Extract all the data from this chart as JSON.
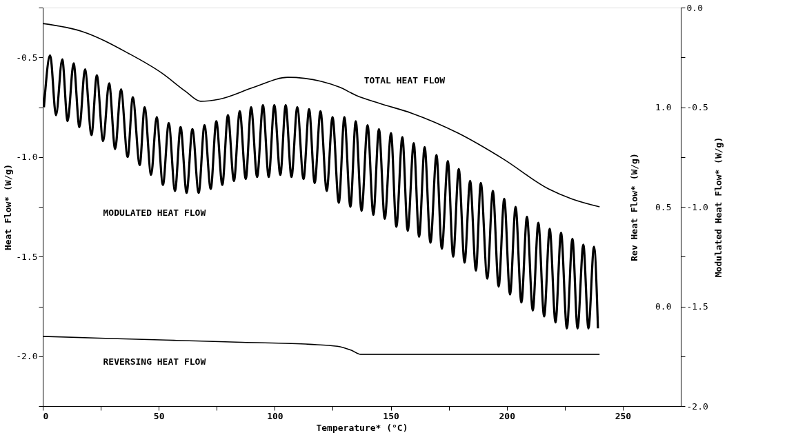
{
  "chart_data": {
    "type": "line",
    "xlabel": "Temperature* (°C)",
    "ylabel": "Heat Flow* (W/g)",
    "y2label": "Rev Heat Flow* (W/g)",
    "y3label": "Modulated Heat Flow* (W/g)",
    "xlim": [
      0,
      275
    ],
    "xticks": [
      0,
      {
        "value": 25,
        "label": null
      },
      50,
      {
        "value": 75,
        "label": null
      },
      100,
      {
        "value": 125,
        "label": null
      },
      150,
      {
        "value": 175,
        "label": null
      },
      200,
      {
        "value": 225,
        "label": null
      },
      250
    ],
    "ylim": [
      -2.25,
      -0.25
    ],
    "yticks": [
      {
        "value": -2.25,
        "label": null
      },
      {
        "value": -2.0,
        "label": "-2.0"
      },
      {
        "value": -1.75,
        "label": null
      },
      -1.5,
      {
        "value": -1.25,
        "label": null
      },
      {
        "value": -1.0,
        "label": "-1.0"
      },
      {
        "value": -0.75,
        "label": null
      },
      -0.5,
      {
        "value": -0.25,
        "label": null
      }
    ],
    "y2lim": [
      -0.5,
      1.5
    ],
    "y2ticks": [
      {
        "value": 0,
        "label": "0.0"
      },
      0.5,
      {
        "value": 1,
        "label": "1.0"
      }
    ],
    "y3lim": [
      -2.0,
      0.0
    ],
    "y3ticks": [
      {
        "value": -2.0,
        "label": "-2.0"
      },
      {
        "value": -1.75,
        "label": null
      },
      -1.5,
      {
        "value": -1.25,
        "label": null
      },
      {
        "value": -1.0,
        "label": "-1.0"
      },
      {
        "value": -0.75,
        "label": null
      },
      -0.5,
      {
        "value": -0.25,
        "label": null
      },
      {
        "value": 0,
        "label": "0.0"
      }
    ],
    "grid": false,
    "marker": "none",
    "line_style": "solid",
    "series": [
      {
        "axis": "y",
        "color": "#000000",
        "x": [
          0,
          17,
          37,
          51.5,
          61.5,
          68,
          76,
          91,
          105.6,
          120,
          128,
          135,
          145,
          159,
          179,
          198.5,
          218,
          228,
          240
        ],
        "values": [
          -0.33,
          -0.37,
          -0.48,
          -0.58,
          -0.67,
          -0.72,
          -0.71,
          -0.65,
          -0.6,
          -0.62,
          -0.65,
          -0.69,
          -0.73,
          -0.78,
          -0.88,
          -1.01,
          -1.16,
          -1.21,
          -1.25
        ]
      },
      {
        "axis": "y2",
        "color": "#000000",
        "x": [
          0,
          27,
          56.5,
          86,
          115,
          127,
          133,
          137,
          145,
          240
        ],
        "values": [
          -0.15,
          -0.16,
          -0.17,
          -0.18,
          -0.19,
          -0.2,
          -0.22,
          -0.24,
          -0.24,
          -0.24
        ]
      },
      {
        "axis": "y3",
        "color": "#000000",
        "x": [
          0.5,
          3.2,
          5.7,
          8.4,
          10.7,
          13.3,
          15.8,
          18.2,
          21,
          23.3,
          26,
          28.6,
          31.2,
          33.7,
          36.6,
          38.8,
          41.8,
          43.9,
          46.7,
          49.1,
          51.8,
          54.3,
          57,
          59.4,
          62,
          64.5,
          67.2,
          69.7,
          72.4,
          74.8,
          77.4,
          79.8,
          82.4,
          84.9,
          87.5,
          89.8,
          92.4,
          94.9,
          97.4,
          99.8,
          102.4,
          104.7,
          107.2,
          109.7,
          112.4,
          114.8,
          117.2,
          119.7,
          122.4,
          124.9,
          127.6,
          130,
          132.6,
          134.9,
          137.4,
          140,
          142.5,
          144.9,
          147.4,
          150.1,
          152.4,
          155,
          157.3,
          159.9,
          162.2,
          164.6,
          167.1,
          169.7,
          172,
          174.6,
          176.9,
          179.3,
          181.8,
          184.2,
          186.7,
          188.8,
          191.6,
          194,
          196.5,
          198.9,
          201.4,
          203.8,
          206.3,
          208.7,
          211.2,
          213.6,
          216.1,
          218.5,
          221,
          223.4,
          225.9,
          228.3,
          230.5,
          233,
          235.2,
          237.6,
          239.3
        ],
        "values": [
          -0.5,
          -0.24,
          -0.54,
          -0.26,
          -0.57,
          -0.28,
          -0.6,
          -0.31,
          -0.64,
          -0.34,
          -0.67,
          -0.38,
          -0.71,
          -0.41,
          -0.75,
          -0.45,
          -0.79,
          -0.5,
          -0.84,
          -0.55,
          -0.89,
          -0.58,
          -0.92,
          -0.6,
          -0.93,
          -0.61,
          -0.93,
          -0.59,
          -0.91,
          -0.57,
          -0.89,
          -0.54,
          -0.87,
          -0.52,
          -0.86,
          -0.5,
          -0.85,
          -0.49,
          -0.85,
          -0.49,
          -0.84,
          -0.49,
          -0.85,
          -0.5,
          -0.86,
          -0.51,
          -0.88,
          -0.52,
          -0.92,
          -0.55,
          -0.98,
          -0.55,
          -1.0,
          -0.57,
          -1.02,
          -0.59,
          -1.04,
          -0.61,
          -1.06,
          -0.63,
          -1.1,
          -0.65,
          -1.12,
          -0.68,
          -1.15,
          -0.7,
          -1.18,
          -0.74,
          -1.21,
          -0.77,
          -1.25,
          -0.81,
          -1.28,
          -0.87,
          -1.32,
          -0.88,
          -1.36,
          -0.92,
          -1.4,
          -0.96,
          -1.44,
          -1.0,
          -1.48,
          -1.05,
          -1.52,
          -1.08,
          -1.55,
          -1.11,
          -1.58,
          -1.13,
          -1.61,
          -1.16,
          -1.61,
          -1.19,
          -1.61,
          -1.2,
          -1.61
        ]
      }
    ],
    "annotations": [
      "TOTAL HEAT FLOW",
      "MODULATED HEAT FLOW",
      "REVERSING HEAT FLOW"
    ]
  }
}
